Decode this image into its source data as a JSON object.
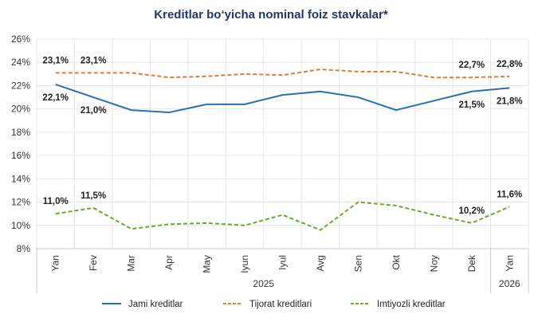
{
  "chart_data": {
    "type": "line",
    "title": "Kreditlar bo‘yicha nominal foiz stavkalar*",
    "categories": [
      "Yan",
      "Fev",
      "Mar",
      "Apr",
      "May",
      "Iyun",
      "Iyul",
      "Avg",
      "Sen",
      "Okt",
      "Noy",
      "Dek",
      "Yan"
    ],
    "year_groups": [
      {
        "label": "2025",
        "span": 12
      },
      {
        "label": "2026",
        "span": 1
      }
    ],
    "ylim": [
      8,
      26
    ],
    "yticks": [
      "8%",
      "10%",
      "12%",
      "14%",
      "16%",
      "18%",
      "20%",
      "22%",
      "24%",
      "26%"
    ],
    "grid": true,
    "legend_position": "bottom",
    "series": [
      {
        "name": "Jami kreditlar",
        "color": "#2471b5",
        "style": "solid",
        "values": [
          22.1,
          21.0,
          19.9,
          19.7,
          20.4,
          20.4,
          21.2,
          21.5,
          21.0,
          19.9,
          20.7,
          21.5,
          21.8
        ],
        "labels": [
          {
            "i": 0,
            "text": "22,1%"
          },
          {
            "i": 1,
            "text": "21,0%"
          },
          {
            "i": 11,
            "text": "21,5%"
          },
          {
            "i": 12,
            "text": "21,8%"
          }
        ]
      },
      {
        "name": "Tijorat kreditlari",
        "color": "#e07b39",
        "style": "dashed",
        "values": [
          23.1,
          23.1,
          23.1,
          22.7,
          22.8,
          23.0,
          22.9,
          23.4,
          23.2,
          23.2,
          22.7,
          22.7,
          22.8
        ],
        "labels": [
          {
            "i": 0,
            "text": "23,1%"
          },
          {
            "i": 1,
            "text": "23,1%"
          },
          {
            "i": 11,
            "text": "22,7%"
          },
          {
            "i": 12,
            "text": "22,8%"
          }
        ]
      },
      {
        "name": "Imtiyozli kreditlar",
        "color": "#6aaa2c",
        "style": "dashed",
        "values": [
          11.0,
          11.5,
          9.7,
          10.1,
          10.2,
          10.0,
          10.9,
          9.6,
          12.0,
          11.7,
          10.9,
          10.2,
          11.6
        ],
        "labels": [
          {
            "i": 0,
            "text": "11,0%"
          },
          {
            "i": 1,
            "text": "11,5%"
          },
          {
            "i": 11,
            "text": "10,2%"
          },
          {
            "i": 12,
            "text": "11,6%"
          }
        ]
      }
    ]
  }
}
